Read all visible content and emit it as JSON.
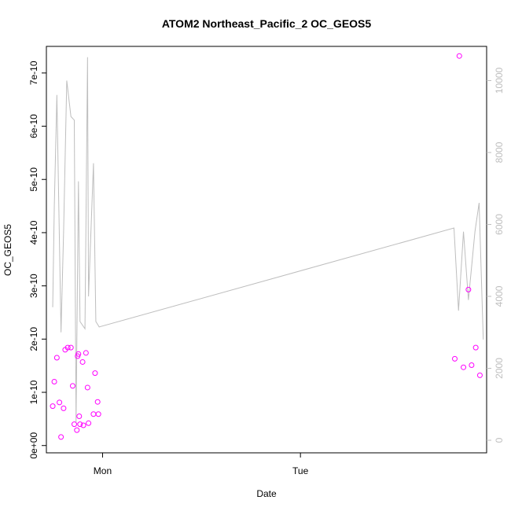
{
  "chart_data": {
    "type": "scatter",
    "title": "ATOM2 Northeast_Pacific_2 OC_GEOS5",
    "xlabel": "Date",
    "ylabel": "OC_GEOS5",
    "y2label": "",
    "x_ticks": [
      {
        "x": 1.0,
        "label": "Mon"
      },
      {
        "x": 2.0,
        "label": "Tue"
      }
    ],
    "y_ticks": [
      {
        "y": 0,
        "label": "0e+00"
      },
      {
        "y": 1e-10,
        "label": "1e-10"
      },
      {
        "y": 2e-10,
        "label": "2e-10"
      },
      {
        "y": 3e-10,
        "label": "3e-10"
      },
      {
        "y": 4e-10,
        "label": "4e-10"
      },
      {
        "y": 5e-10,
        "label": "5e-10"
      },
      {
        "y": 6e-10,
        "label": "6e-10"
      },
      {
        "y": 7e-10,
        "label": "7e-10"
      }
    ],
    "y2_ticks": [
      {
        "y": 0,
        "label": "0"
      },
      {
        "y": 2000,
        "label": "2000"
      },
      {
        "y": 4000,
        "label": "4000"
      },
      {
        "y": 6000,
        "label": "6000"
      },
      {
        "y": 8000,
        "label": "8000"
      },
      {
        "y": 10000,
        "label": "10000"
      }
    ],
    "xlim": [
      0.716,
      2.941
    ],
    "ylim": [
      -1.37e-11,
      7.5e-10
    ],
    "y2lim": [
      -350,
      10950
    ],
    "colors": {
      "points": "#ff00ff",
      "line": "#bebebe",
      "axis": "#000000",
      "axis_right": "#bebebe"
    },
    "series": [
      {
        "kind": "points",
        "axis": "left",
        "points": [
          [
            0.748,
            7.4e-11
          ],
          [
            0.756,
            1.2e-10
          ],
          [
            0.769,
            1.65e-10
          ],
          [
            0.782,
            8.1e-11
          ],
          [
            0.79,
            1.6e-11
          ],
          [
            0.803,
            7e-11
          ],
          [
            0.811,
            1.8e-10
          ],
          [
            0.824,
            1.84e-10
          ],
          [
            0.84,
            1.84e-10
          ],
          [
            0.849,
            1.12e-10
          ],
          [
            0.857,
            4e-11
          ],
          [
            0.87,
            2.9e-11
          ],
          [
            0.874,
            1.68e-10
          ],
          [
            0.878,
            1.72e-10
          ],
          [
            0.882,
            5.5e-11
          ],
          [
            0.886,
            4e-11
          ],
          [
            0.899,
            1.57e-10
          ],
          [
            0.903,
            3.8e-11
          ],
          [
            0.916,
            1.74e-10
          ],
          [
            0.924,
            1.09e-10
          ],
          [
            0.929,
            4.2e-11
          ],
          [
            0.954,
            5.9e-11
          ],
          [
            0.962,
            1.36e-10
          ],
          [
            0.975,
            8.2e-11
          ],
          [
            0.979,
            5.9e-11
          ],
          [
            2.78,
            1.63e-10
          ],
          [
            2.803,
            7.32e-10
          ],
          [
            2.824,
            1.47e-10
          ],
          [
            2.849,
            2.93e-10
          ],
          [
            2.865,
            1.51e-10
          ],
          [
            2.886,
            1.84e-10
          ],
          [
            2.907,
            1.32e-10
          ]
        ]
      },
      {
        "kind": "line",
        "axis": "right",
        "points": [
          [
            0.748,
            3700
          ],
          [
            0.756,
            6500
          ],
          [
            0.769,
            9600
          ],
          [
            0.79,
            3000
          ],
          [
            0.803,
            5800
          ],
          [
            0.819,
            10000
          ],
          [
            0.84,
            9000
          ],
          [
            0.857,
            8900
          ],
          [
            0.866,
            500
          ],
          [
            0.878,
            7200
          ],
          [
            0.886,
            3300
          ],
          [
            0.911,
            3100
          ],
          [
            0.924,
            10650
          ],
          [
            0.929,
            4000
          ],
          [
            0.954,
            7700
          ],
          [
            0.966,
            3300
          ],
          [
            0.983,
            3150
          ],
          [
            2.776,
            5900
          ],
          [
            2.799,
            3600
          ],
          [
            2.824,
            5800
          ],
          [
            2.849,
            3900
          ],
          [
            2.882,
            5800
          ],
          [
            2.903,
            6600
          ],
          [
            2.924,
            2800
          ]
        ]
      }
    ]
  }
}
